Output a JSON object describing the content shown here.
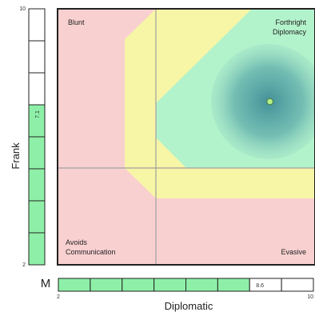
{
  "plot": {
    "labels": {
      "top_left": "Blunt",
      "top_right_line1": "Forthright",
      "top_right_line2": "Diplomacy",
      "bottom_left_line1": "Avoids",
      "bottom_left_line2": "Communication",
      "bottom_right": "Evasive"
    },
    "point": {
      "x": 8.6,
      "y": 7.1
    },
    "colors": {
      "red_zone": "#f9d0d0",
      "yellow_zone": "#f7f5a6",
      "green_zone": "#b3f3cc",
      "circle": "#4a9aa0",
      "point": "#b5f08a"
    }
  },
  "y_scale": {
    "label": "Frank",
    "min_label": "2",
    "max_label": "10",
    "value": 7.1,
    "value_label": "7.1",
    "segments": 8,
    "filled_segments": 5
  },
  "x_scale": {
    "label": "Diplomatic",
    "min_label": "2",
    "max_label": "10",
    "value": 8.6,
    "value_label": "8.6",
    "segments": 8,
    "filled_segments": 6,
    "prefix": "M"
  },
  "chart_data": {
    "type": "scatter",
    "x": [
      8.6
    ],
    "y": [
      7.1
    ],
    "xlabel": "Diplomatic",
    "ylabel": "Frank",
    "xlim": [
      2,
      10
    ],
    "ylim": [
      2,
      10
    ]
  }
}
